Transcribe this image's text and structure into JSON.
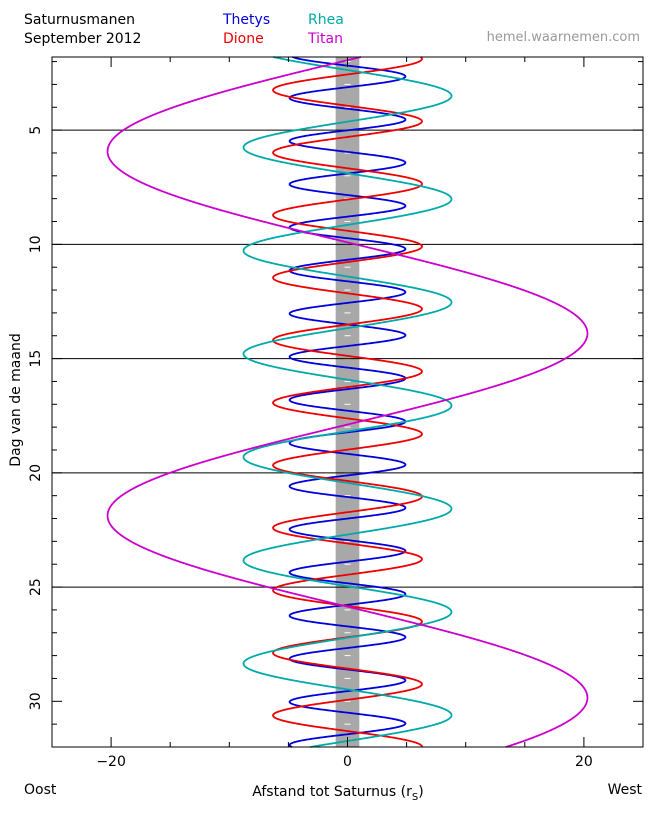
{
  "header": {
    "title_line1": "Saturnusmanen",
    "title_line2": "September 2012",
    "credit": "hemel.waarnemen.com"
  },
  "footer": {
    "left": "Oost",
    "right": "West"
  },
  "chart_data": {
    "type": "line",
    "title": "Saturnusmanen September 2012",
    "xlabel": "Afstand tot Saturnus (r",
    "xlabel_sub": "S",
    "xlabel_close": ")",
    "ylabel": "Dag van de maand",
    "xlim": [
      -25,
      25
    ],
    "ylim": [
      1.8,
      32
    ],
    "y_inverted": true,
    "x_ticks": [
      -20,
      0,
      20
    ],
    "x_tick_labels": [
      "−20",
      "0",
      "20"
    ],
    "y_ticks": [
      5,
      10,
      15,
      20,
      25,
      30
    ],
    "y_tick_labels": [
      "5",
      "10",
      "15",
      "20",
      "25",
      "30"
    ],
    "horizontal_lines_at": [
      5,
      10,
      15,
      20,
      25
    ],
    "planet_band": {
      "x_min": -1,
      "x_max": 1,
      "color": "#a8a8a8"
    },
    "legend": [
      {
        "name": "Thetys",
        "color": "#0000dd"
      },
      {
        "name": "Rhea",
        "color": "#00aaaa"
      },
      {
        "name": "Dione",
        "color": "#ee0000"
      },
      {
        "name": "Titan",
        "color": "#cc00cc"
      }
    ],
    "series": [
      {
        "name": "Thetys",
        "color": "#0000dd",
        "amplitude": 4.9,
        "period_days": 1.888,
        "phase_days": 2.65
      },
      {
        "name": "Dione",
        "color": "#ee0000",
        "amplitude": 6.3,
        "period_days": 2.737,
        "phase_days": 1.88
      },
      {
        "name": "Rhea",
        "color": "#00aaaa",
        "amplitude": 8.8,
        "period_days": 4.518,
        "phase_days": 3.5
      },
      {
        "name": "Titan",
        "color": "#cc00cc",
        "amplitude": 20.3,
        "period_days": 15.945,
        "phase_days": 13.9
      }
    ]
  }
}
